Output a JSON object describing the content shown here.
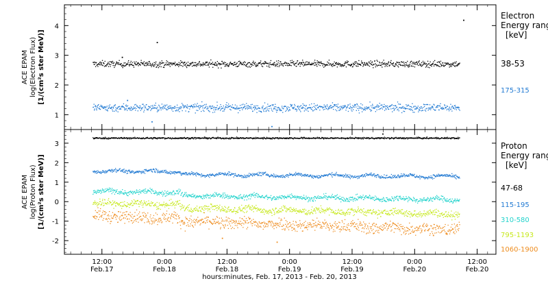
{
  "xaxis": {
    "title": "hours:minutes, Feb. 17, 2013 - Feb. 20, 2013",
    "ticks": [
      {
        "time": "12:00",
        "date": "Feb.17",
        "hours": 12
      },
      {
        "time": "0:00",
        "date": "Feb.18",
        "hours": 24
      },
      {
        "time": "12:00",
        "date": "Feb.18",
        "hours": 36
      },
      {
        "time": "0:00",
        "date": "Feb.19",
        "hours": 48
      },
      {
        "time": "12:00",
        "date": "Feb.19",
        "hours": 60
      },
      {
        "time": "0:00",
        "date": "Feb.20",
        "hours": 72
      },
      {
        "time": "12:00",
        "date": "Feb.20",
        "hours": 84
      }
    ]
  },
  "chart_data": [
    {
      "type": "scatter",
      "ylabel_lines": [
        "ACE EPAM",
        "log(Electron Flux)",
        "[1/(cm²s ster MeV)]"
      ],
      "ylim": [
        0.5,
        4.7
      ],
      "yticks": [
        1,
        2,
        3,
        4
      ],
      "xlim_hours": [
        4.8,
        87.6
      ],
      "legend_title": [
        "Electron",
        "Energy range",
        "[keV]"
      ],
      "series": [
        {
          "name": "38-53",
          "color": "#000000",
          "level": 2.72,
          "scatter": 0.1,
          "outliers": [
            [
              22.5,
              3.45
            ],
            [
              81.3,
              4.2
            ],
            [
              15.8,
              2.95
            ]
          ]
        },
        {
          "name": "175-315",
          "color": "#1e78d2",
          "level": 1.25,
          "scatter": 0.13,
          "outliers": [
            [
              44.5,
              0.62
            ],
            [
              16.8,
              1.5
            ],
            [
              21.5,
              0.78
            ]
          ]
        }
      ]
    },
    {
      "type": "scatter",
      "ylabel_lines": [
        "ACE EPAM",
        "log(Proton Flux)",
        "[1/(cm²s ster MeV)]"
      ],
      "ylim": [
        -2.7,
        3.7
      ],
      "yticks": [
        -2,
        -1,
        0,
        1,
        2,
        3
      ],
      "xlim_hours": [
        4.8,
        87.6
      ],
      "legend_title": [
        "Proton",
        "Energy range",
        "[keV]"
      ],
      "series": [
        {
          "name": "47-68",
          "color": "#000000",
          "level": 3.28,
          "scatter": 0.04,
          "outliers": [
            [
              65.8,
              3.5
            ]
          ]
        },
        {
          "name": "115-195",
          "color": "#1e78d2",
          "level": 1.45,
          "scatter": 0.09,
          "outliers": []
        },
        {
          "name": "310-580",
          "color": "#22d3cc",
          "level": 0.4,
          "scatter": 0.13,
          "outliers": []
        },
        {
          "name": "795-1193",
          "color": "#c6e81a",
          "level": -0.2,
          "scatter": 0.18,
          "outliers": []
        },
        {
          "name": "1060-1900",
          "color": "#ee8c1e",
          "level": -0.85,
          "scatter": 0.3,
          "outliers": [
            [
              45.5,
              -2.05
            ],
            [
              35.0,
              -1.85
            ],
            [
              64.0,
              -1.6
            ],
            [
              75.5,
              -1.7
            ]
          ]
        }
      ]
    }
  ]
}
